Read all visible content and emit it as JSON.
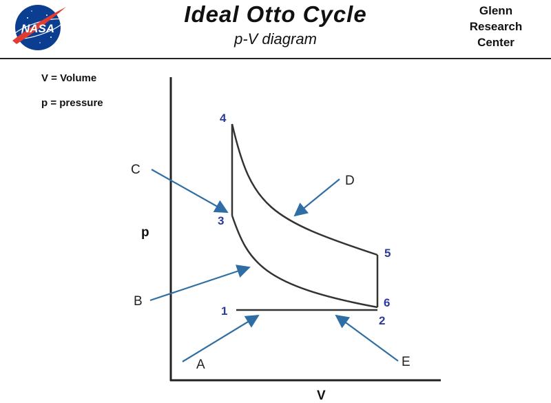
{
  "header": {
    "logo_text": "NASA",
    "title": "Ideal Otto Cycle",
    "subtitle": "p-V diagram",
    "org_lines": [
      "Glenn",
      "Research",
      "Center"
    ]
  },
  "legend": {
    "volume": "V = Volume",
    "pressure": "p = pressure"
  },
  "axes": {
    "x": "V",
    "y": "p"
  },
  "states": [
    "1",
    "2",
    "3",
    "4",
    "5",
    "6"
  ],
  "callouts": [
    "A",
    "B",
    "C",
    "D",
    "E"
  ],
  "colors": {
    "state_labels": "#2b3a9c",
    "arrows": "#2f6ea4",
    "logo_blue": "#0b3d91",
    "logo_red": "#e03c31"
  }
}
